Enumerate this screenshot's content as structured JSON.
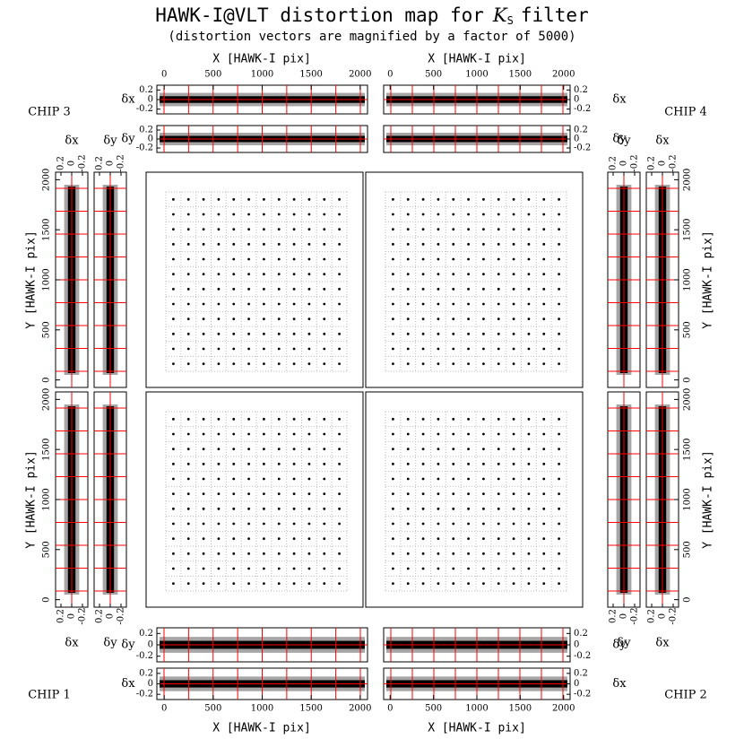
{
  "chart_data": {
    "type": "distortion-map",
    "title_main": "HAWK-I@VLT distortion map for",
    "title_filter": "K",
    "title_filter_sub": "S",
    "title_end": "filter",
    "subtitle": "(distortion vectors are magnified by a factor of 5000)",
    "chips": [
      "CHIP 1",
      "CHIP 2",
      "CHIP 3",
      "CHIP 4"
    ],
    "x_label": "X [HAWK-I pix]",
    "y_label": "Y [HAWK-I pix]",
    "dx_label": "δx",
    "dy_label": "δy",
    "pixel_lim": [
      -75,
      2075
    ],
    "pixel_ticks": [
      0,
      500,
      1000,
      1500,
      2000
    ],
    "residual_lim": [
      -0.3,
      0.3
    ],
    "residual_ticks": [
      -0.2,
      0,
      0.2
    ],
    "residual_color": "#ff0000"
  }
}
